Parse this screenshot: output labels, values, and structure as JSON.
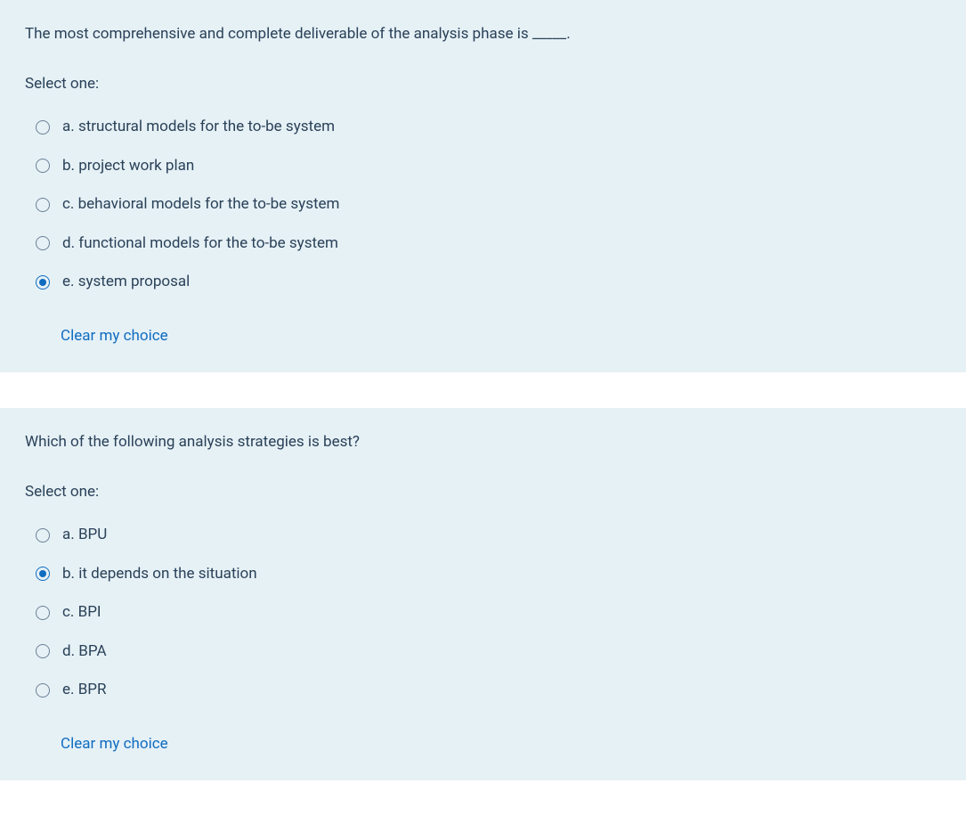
{
  "colors": {
    "panel_bg": "#e6f1f6",
    "text": "#2a4158",
    "accent": "#0f6cbf",
    "radio_border": "#6b8094"
  },
  "questions": [
    {
      "prompt": "The most comprehensive and complete deliverable of the analysis phase is _____.",
      "select_label": "Select one:",
      "selected_index": 4,
      "options": [
        {
          "letter": "a.",
          "text": "structural models for the to-be system"
        },
        {
          "letter": "b.",
          "text": "project work plan"
        },
        {
          "letter": "c.",
          "text": "behavioral models for the to-be system"
        },
        {
          "letter": "d.",
          "text": "functional models for the to-be system"
        },
        {
          "letter": "e.",
          "text": "system proposal"
        }
      ],
      "clear_label": "Clear my choice"
    },
    {
      "prompt": "Which of the following analysis strategies is best?",
      "select_label": "Select one:",
      "selected_index": 1,
      "options": [
        {
          "letter": "a.",
          "text": "BPU"
        },
        {
          "letter": "b.",
          "text": "it depends on the situation"
        },
        {
          "letter": "c.",
          "text": "BPI"
        },
        {
          "letter": "d.",
          "text": "BPA"
        },
        {
          "letter": "e.",
          "text": "BPR"
        }
      ],
      "clear_label": "Clear my choice"
    }
  ]
}
